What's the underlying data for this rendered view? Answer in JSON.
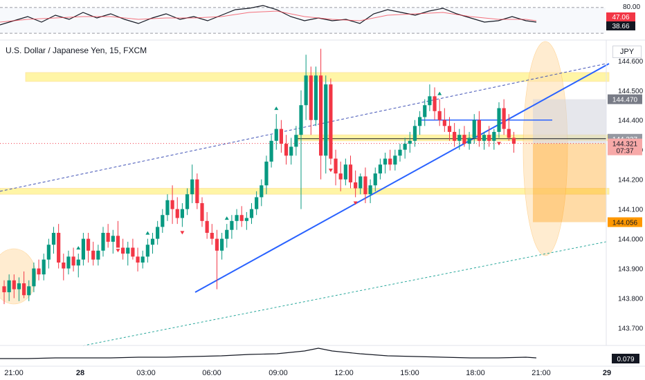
{
  "header": {
    "title": "U.S. Dollar / Japanese Yen, 15, FXCM",
    "currency": "JPY"
  },
  "oscillator": {
    "levels": [
      "80.00",
      "20.00"
    ],
    "badges": [
      {
        "label": "47.06",
        "bg": "#f23645",
        "fg": "#ffffff"
      },
      {
        "label": "38.66",
        "bg": "#131722",
        "fg": "#ffffff"
      }
    ]
  },
  "price_axis": {
    "ticks": [
      "144.600",
      "144.500",
      "144.400",
      "144.300",
      "144.200",
      "144.100",
      "144.000",
      "143.900",
      "143.800",
      "143.700"
    ],
    "badges": [
      {
        "label": "144.470",
        "bg": "#787b86",
        "fg": "#ffffff"
      },
      {
        "label": "144.337",
        "bg": "#9598a1",
        "fg": "#ffffff"
      },
      {
        "label": "144.321",
        "sub": "07:37",
        "bg": "#f7a9a8",
        "fg": "#131722"
      },
      {
        "label": "144.056",
        "bg": "#ff9800",
        "fg": "#131722"
      }
    ]
  },
  "time_axis": {
    "ticks": [
      "21:00",
      "28",
      "03:00",
      "06:00",
      "09:00",
      "12:00",
      "15:00",
      "18:00",
      "21:00",
      "29"
    ]
  },
  "bottom_indicator": {
    "badge": "0.079"
  },
  "colors": {
    "up": "#089981",
    "down": "#f23645",
    "zone": "#ffeb3b",
    "trend": "#2962ff",
    "target": "#ff9800",
    "sma": "#ef5350"
  },
  "chart_data": {
    "type": "candlestick",
    "title": "U.S. Dollar / Japanese Yen, 15, FXCM",
    "ylim": [
      143.65,
      144.66
    ],
    "candles": [
      [
        143.84,
        143.86,
        143.78,
        143.82
      ],
      [
        143.82,
        143.88,
        143.79,
        143.86
      ],
      [
        143.86,
        143.88,
        143.8,
        143.83
      ],
      [
        143.83,
        143.87,
        143.79,
        143.85
      ],
      [
        143.85,
        143.89,
        143.8,
        143.81
      ],
      [
        143.81,
        143.86,
        143.79,
        143.84
      ],
      [
        143.84,
        143.92,
        143.82,
        143.9
      ],
      [
        143.9,
        143.93,
        143.86,
        143.88
      ],
      [
        143.88,
        143.95,
        143.86,
        143.93
      ],
      [
        143.93,
        144.0,
        143.9,
        143.98
      ],
      [
        143.98,
        144.04,
        143.95,
        144.02
      ],
      [
        144.02,
        144.05,
        143.9,
        143.92
      ],
      [
        143.92,
        143.95,
        143.86,
        143.9
      ],
      [
        143.9,
        143.96,
        143.88,
        143.94
      ],
      [
        143.94,
        143.97,
        143.89,
        143.91
      ],
      [
        143.91,
        143.95,
        143.87,
        143.93
      ],
      [
        143.93,
        144.02,
        143.91,
        144.0
      ],
      [
        144.0,
        144.02,
        143.92,
        143.96
      ],
      [
        143.96,
        143.99,
        143.91,
        143.93
      ],
      [
        143.93,
        143.98,
        143.91,
        143.96
      ],
      [
        143.96,
        144.04,
        143.94,
        144.02
      ],
      [
        144.02,
        144.05,
        143.97,
        143.99
      ],
      [
        143.99,
        144.03,
        143.95,
        144.01
      ],
      [
        144.01,
        144.06,
        143.98,
        143.97
      ],
      [
        143.97,
        144.0,
        143.93,
        143.95
      ],
      [
        143.95,
        143.99,
        143.91,
        143.97
      ],
      [
        143.97,
        144.0,
        143.93,
        143.94
      ],
      [
        143.94,
        143.97,
        143.89,
        143.92
      ],
      [
        143.92,
        143.96,
        143.9,
        143.94
      ],
      [
        143.94,
        144.0,
        143.92,
        143.98
      ],
      [
        143.98,
        144.02,
        143.95,
        144.0
      ],
      [
        144.0,
        144.06,
        143.98,
        144.04
      ],
      [
        144.04,
        144.1,
        144.02,
        144.08
      ],
      [
        144.08,
        144.15,
        144.06,
        144.13
      ],
      [
        144.13,
        144.18,
        144.05,
        144.1
      ],
      [
        144.1,
        144.14,
        144.05,
        144.07
      ],
      [
        144.07,
        144.12,
        144.04,
        144.1
      ],
      [
        144.1,
        144.17,
        144.08,
        144.15
      ],
      [
        144.15,
        144.25,
        144.12,
        144.2
      ],
      [
        144.2,
        144.22,
        144.1,
        144.12
      ],
      [
        144.12,
        144.14,
        144.04,
        144.06
      ],
      [
        144.06,
        144.09,
        144.0,
        144.02
      ],
      [
        144.02,
        144.05,
        143.98,
        144.0
      ],
      [
        144.0,
        144.03,
        143.83,
        143.96
      ],
      [
        143.96,
        144.02,
        143.93,
        144.0
      ],
      [
        144.0,
        144.05,
        143.97,
        144.03
      ],
      [
        144.03,
        144.08,
        144.0,
        144.06
      ],
      [
        144.06,
        144.1,
        144.03,
        144.08
      ],
      [
        144.08,
        144.11,
        144.04,
        144.06
      ],
      [
        144.06,
        144.09,
        144.03,
        144.07
      ],
      [
        144.07,
        144.12,
        144.05,
        144.1
      ],
      [
        144.1,
        144.16,
        144.08,
        144.14
      ],
      [
        144.14,
        144.2,
        144.11,
        144.18
      ],
      [
        144.18,
        144.28,
        144.15,
        144.26
      ],
      [
        144.26,
        144.35,
        144.24,
        144.33
      ],
      [
        144.33,
        144.42,
        144.3,
        144.37
      ],
      [
        144.37,
        144.4,
        144.29,
        144.32
      ],
      [
        144.32,
        144.35,
        144.25,
        144.28
      ],
      [
        144.28,
        144.34,
        144.25,
        144.31
      ],
      [
        144.31,
        144.38,
        144.28,
        144.35
      ],
      [
        144.35,
        144.5,
        144.1,
        144.45
      ],
      [
        144.45,
        144.62,
        144.4,
        144.55
      ],
      [
        144.55,
        144.58,
        144.35,
        144.4
      ],
      [
        144.4,
        144.58,
        144.38,
        144.55
      ],
      [
        144.55,
        144.64,
        144.2,
        144.28
      ],
      [
        144.28,
        144.55,
        144.22,
        144.52
      ],
      [
        144.52,
        144.54,
        144.25,
        144.27
      ],
      [
        144.27,
        144.3,
        144.18,
        144.22
      ],
      [
        144.22,
        144.26,
        144.16,
        144.2
      ],
      [
        144.2,
        144.27,
        144.18,
        144.25
      ],
      [
        144.25,
        144.28,
        144.17,
        144.19
      ],
      [
        144.19,
        144.23,
        144.14,
        144.17
      ],
      [
        144.17,
        144.22,
        144.15,
        144.21
      ],
      [
        144.21,
        144.24,
        144.12,
        144.15
      ],
      [
        144.15,
        144.2,
        144.12,
        144.18
      ],
      [
        144.18,
        144.24,
        144.16,
        144.22
      ],
      [
        144.22,
        144.27,
        144.2,
        144.25
      ],
      [
        144.25,
        144.29,
        144.22,
        144.27
      ],
      [
        144.27,
        144.3,
        144.23,
        144.25
      ],
      [
        144.25,
        144.3,
        144.23,
        144.28
      ],
      [
        144.28,
        144.32,
        144.26,
        144.3
      ],
      [
        144.3,
        144.34,
        144.27,
        144.32
      ],
      [
        144.32,
        144.36,
        144.29,
        144.33
      ],
      [
        144.33,
        144.4,
        144.31,
        144.38
      ],
      [
        144.38,
        144.43,
        144.35,
        144.41
      ],
      [
        144.41,
        144.47,
        144.38,
        144.45
      ],
      [
        144.45,
        144.52,
        144.43,
        144.48
      ],
      [
        144.48,
        144.51,
        144.4,
        144.43
      ],
      [
        144.43,
        144.47,
        144.38,
        144.4
      ],
      [
        144.4,
        144.44,
        144.36,
        144.38
      ],
      [
        144.38,
        144.41,
        144.33,
        144.36
      ],
      [
        144.36,
        144.39,
        144.31,
        144.33
      ],
      [
        144.33,
        144.37,
        144.3,
        144.35
      ],
      [
        144.35,
        144.38,
        144.31,
        144.32
      ],
      [
        144.32,
        144.36,
        144.3,
        144.34
      ],
      [
        144.34,
        144.42,
        144.32,
        144.4
      ],
      [
        144.4,
        144.43,
        144.31,
        144.33
      ],
      [
        144.33,
        144.36,
        144.3,
        144.35
      ],
      [
        144.35,
        144.38,
        144.31,
        144.33
      ],
      [
        144.33,
        144.37,
        144.3,
        144.36
      ],
      [
        144.36,
        144.46,
        144.34,
        144.44
      ],
      [
        144.44,
        144.47,
        144.35,
        144.37
      ],
      [
        144.37,
        144.42,
        144.33,
        144.34
      ],
      [
        144.34,
        144.36,
        144.29,
        144.32
      ]
    ],
    "horizontal_zones": [
      {
        "from": 144.53,
        "to": 144.56
      },
      {
        "from": 144.15,
        "to": 144.17
      },
      {
        "from": 144.33,
        "to": 144.35
      }
    ],
    "trend_lines": [
      {
        "from": [
          143.82,
          44
        ],
        "to": [
          144.59,
          110
        ]
      }
    ],
    "channel_lines": [
      {
        "from": [
          144.16,
          0
        ],
        "to": [
          144.59,
          110
        ],
        "style": "dashed"
      },
      {
        "from": [
          143.64,
          16
        ],
        "to": [
          143.99,
          110
        ],
        "style": "dashed"
      }
    ],
    "last_price": 144.321,
    "target": 144.056,
    "reference_price": 144.47
  }
}
